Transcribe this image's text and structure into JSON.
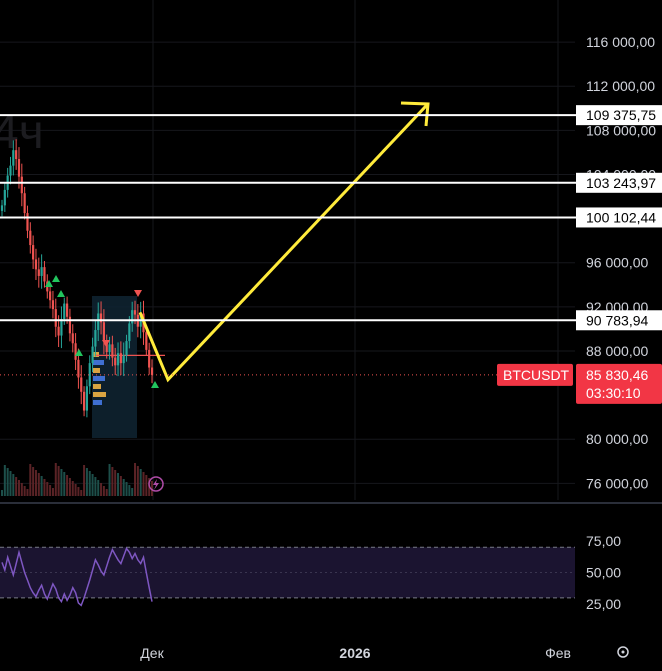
{
  "chart_data": {
    "type": "candlestick",
    "symbol": "BTCUSDT",
    "interval_watermark": "4ч",
    "price_axis": {
      "range": [
        75400,
        118000
      ],
      "ticks": [
        "116 000,00",
        "112 000,00",
        "108 000,00",
        "104 000,00",
        "96 000,00",
        "92 000,00",
        "88 000,00",
        "80 000,00",
        "76 000,00"
      ],
      "tick_values": [
        116000,
        112000,
        108000,
        104000,
        96000,
        92000,
        88000,
        80000,
        76000
      ]
    },
    "time_axis": {
      "ticks": [
        "Дек",
        "2026",
        "Фев"
      ]
    },
    "levels": [
      {
        "label": "109 375,75",
        "value": 109375.75
      },
      {
        "label": "103 243,97",
        "value": 103243.97
      },
      {
        "label": "100 102,44",
        "value": 100102.44
      },
      {
        "label": "90 783,94",
        "value": 90783.94
      }
    ],
    "current_price": {
      "symbol_label": "BTCUSDT",
      "price_label": "85 830,46",
      "value": 85830.46,
      "countdown": "03:30:10"
    },
    "projection_path": [
      {
        "label": "start",
        "price": 91500
      },
      {
        "label": "low",
        "price": 85400
      },
      {
        "label": "target",
        "price": 110300
      }
    ],
    "candles_close": [
      101200,
      102600,
      103900,
      104800,
      106200,
      105400,
      103800,
      102300,
      100500,
      98900,
      97600,
      96300,
      95400,
      94800,
      95600,
      94300,
      93400,
      92600,
      91800,
      90200,
      89400,
      90900,
      92300,
      91100,
      89600,
      88700,
      87200,
      85600,
      84300,
      82600,
      84800,
      86900,
      88400,
      89900,
      91400,
      90600,
      88900,
      87900,
      88600,
      87400,
      86700,
      87800,
      86900,
      87600,
      88900,
      90500,
      91700,
      91300,
      90200,
      91400,
      89700,
      88100,
      86500,
      85830
    ],
    "rsi": {
      "ticks": [
        "75,00",
        "50,00",
        "25,00"
      ],
      "tick_values": [
        75,
        50,
        25
      ],
      "upper_band": 70,
      "lower_band": 30,
      "range": [
        18,
        82
      ],
      "values": [
        58,
        52,
        62,
        55,
        48,
        57,
        66,
        58,
        50,
        44,
        38,
        34,
        31,
        36,
        40,
        33,
        29,
        35,
        41,
        37,
        30,
        27,
        33,
        28,
        32,
        38,
        34,
        26,
        24,
        30,
        37,
        44,
        52,
        60,
        56,
        51,
        48,
        55,
        62,
        68,
        64,
        60,
        57,
        63,
        69,
        66,
        61,
        65,
        60,
        57,
        62,
        50,
        38,
        27
      ]
    }
  }
}
